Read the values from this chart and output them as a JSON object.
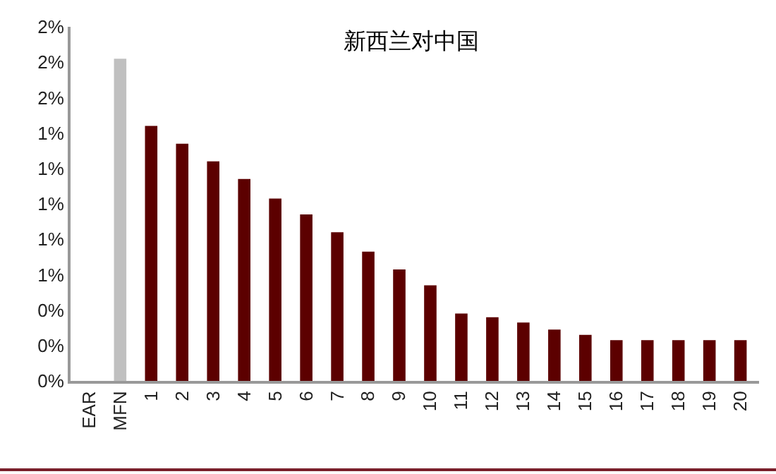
{
  "chart_data": {
    "type": "bar",
    "title": "新西兰对中国",
    "categories": [
      "EAR",
      "MFN",
      "1",
      "2",
      "3",
      "4",
      "5",
      "6",
      "7",
      "8",
      "9",
      "10",
      "11",
      "12",
      "13",
      "14",
      "15",
      "16",
      "17",
      "18",
      "19",
      "20"
    ],
    "values": [
      null,
      1.82,
      1.44,
      1.34,
      1.24,
      1.14,
      1.03,
      0.94,
      0.84,
      0.73,
      0.63,
      0.54,
      0.38,
      0.36,
      0.33,
      0.29,
      0.26,
      0.23,
      0.23,
      0.23,
      0.23,
      0.23
    ],
    "colors": [
      "#5c0000",
      "#c0c0c0",
      "#5c0000",
      "#5c0000",
      "#5c0000",
      "#5c0000",
      "#5c0000",
      "#5c0000",
      "#5c0000",
      "#5c0000",
      "#5c0000",
      "#5c0000",
      "#5c0000",
      "#5c0000",
      "#5c0000",
      "#5c0000",
      "#5c0000",
      "#5c0000",
      "#5c0000",
      "#5c0000",
      "#5c0000",
      "#5c0000"
    ],
    "ylim": [
      0,
      2
    ],
    "yticks": [
      {
        "value": 0,
        "label": "0%"
      },
      {
        "value": 0.2,
        "label": "0%"
      },
      {
        "value": 0.4,
        "label": "0%"
      },
      {
        "value": 0.6,
        "label": "1%"
      },
      {
        "value": 0.8,
        "label": "1%"
      },
      {
        "value": 1.0,
        "label": "1%"
      },
      {
        "value": 1.2,
        "label": "1%"
      },
      {
        "value": 1.4,
        "label": "1%"
      },
      {
        "value": 1.6,
        "label": "2%"
      },
      {
        "value": 1.8,
        "label": "2%"
      },
      {
        "value": 2.0,
        "label": "2%"
      }
    ],
    "grid": false,
    "legend": false
  }
}
